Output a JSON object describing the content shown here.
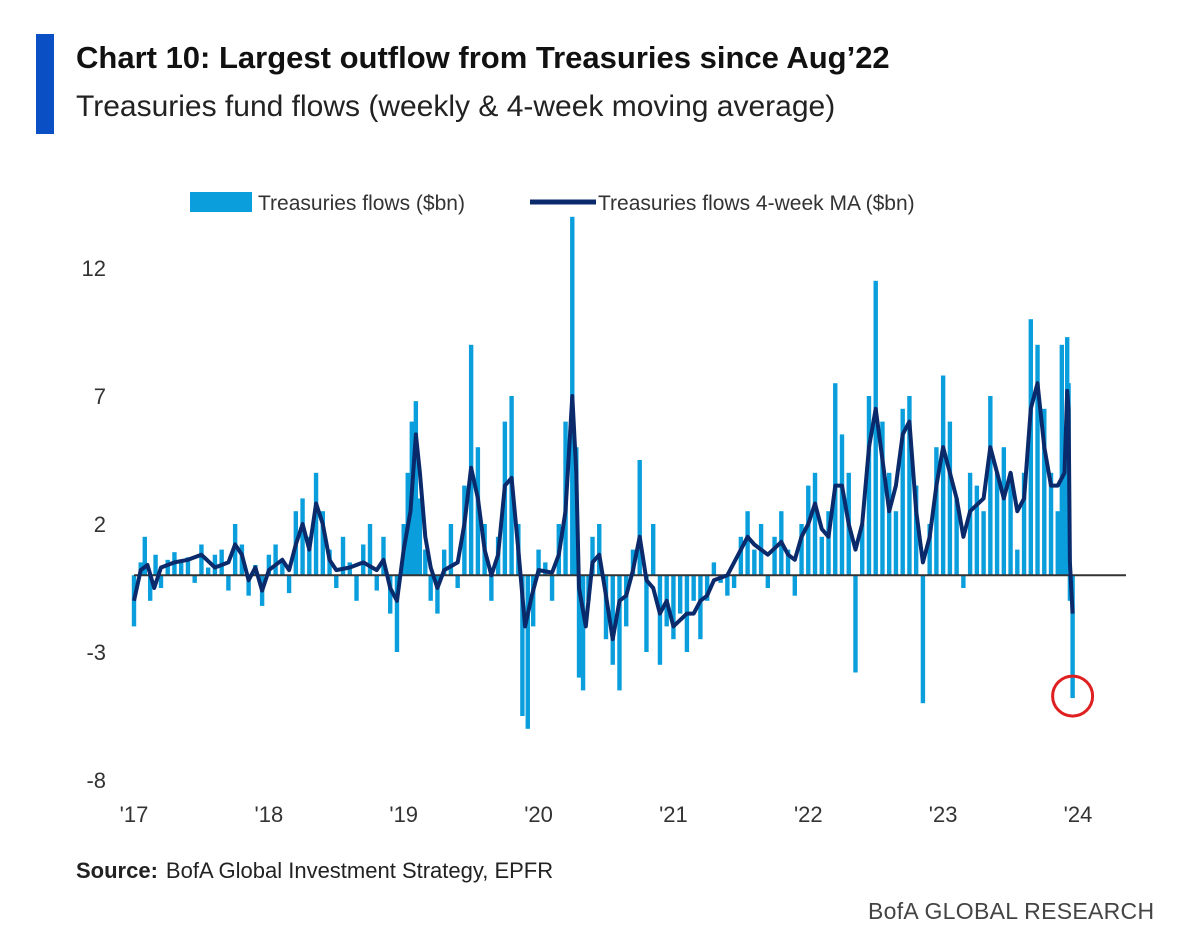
{
  "header": {
    "title": "Chart 10: Largest outflow from Treasuries since Aug’22",
    "subtitle": "Treasuries fund flows (weekly & 4-week moving average)"
  },
  "footer": {
    "source_label": "Source:",
    "source_text": "BofA Global Investment Strategy, EPFR",
    "brand": "BofA GLOBAL RESEARCH"
  },
  "colors": {
    "accent": "#0a4fc4",
    "weekly": "#0a9fdc",
    "ma": "#0b2a6b",
    "highlight_circle": "#e02020",
    "zero_line": "#333333"
  },
  "chart_data": {
    "type": "bar+line",
    "legend": {
      "placement": "top",
      "entries": [
        "Treasuries flows ($bn)",
        "Treasuries flows 4-week MA ($bn)"
      ]
    },
    "y_ticks": [
      12,
      7,
      2,
      -3,
      -8
    ],
    "ylim": [
      -8,
      13.5
    ],
    "x_ticks": [
      "'17",
      "'18",
      "'19",
      "'20",
      "'21",
      "'22",
      "'23",
      "'24"
    ],
    "xlim": [
      2017.0,
      2024.0
    ],
    "grid": false,
    "highlight": {
      "x": 2023.96,
      "y": -4.8,
      "shape": "circle"
    },
    "series": [
      {
        "name": "Treasuries flows ($bn)",
        "kind": "bar",
        "points": [
          [
            2017.0,
            -2.0
          ],
          [
            2017.05,
            0.5
          ],
          [
            2017.08,
            1.5
          ],
          [
            2017.12,
            -1.0
          ],
          [
            2017.16,
            0.8
          ],
          [
            2017.2,
            -0.5
          ],
          [
            2017.25,
            0.6
          ],
          [
            2017.3,
            0.9
          ],
          [
            2017.35,
            0.5
          ],
          [
            2017.4,
            0.7
          ],
          [
            2017.45,
            -0.3
          ],
          [
            2017.5,
            1.2
          ],
          [
            2017.55,
            0.3
          ],
          [
            2017.6,
            0.8
          ],
          [
            2017.65,
            1.0
          ],
          [
            2017.7,
            -0.6
          ],
          [
            2017.75,
            2.0
          ],
          [
            2017.8,
            1.2
          ],
          [
            2017.85,
            -0.8
          ],
          [
            2017.9,
            0.4
          ],
          [
            2017.95,
            -1.2
          ],
          [
            2018.0,
            0.8
          ],
          [
            2018.05,
            1.2
          ],
          [
            2018.1,
            0.5
          ],
          [
            2018.15,
            -0.7
          ],
          [
            2018.2,
            2.5
          ],
          [
            2018.25,
            3.0
          ],
          [
            2018.3,
            1.5
          ],
          [
            2018.35,
            4.0
          ],
          [
            2018.4,
            2.5
          ],
          [
            2018.45,
            1.0
          ],
          [
            2018.5,
            -0.5
          ],
          [
            2018.55,
            1.5
          ],
          [
            2018.6,
            0.5
          ],
          [
            2018.65,
            -1.0
          ],
          [
            2018.7,
            1.2
          ],
          [
            2018.75,
            2.0
          ],
          [
            2018.8,
            -0.6
          ],
          [
            2018.85,
            1.5
          ],
          [
            2018.9,
            -1.5
          ],
          [
            2018.95,
            -3.0
          ],
          [
            2019.0,
            2.0
          ],
          [
            2019.03,
            4.0
          ],
          [
            2019.06,
            6.0
          ],
          [
            2019.09,
            6.8
          ],
          [
            2019.12,
            3.0
          ],
          [
            2019.16,
            1.0
          ],
          [
            2019.2,
            -1.0
          ],
          [
            2019.25,
            -1.5
          ],
          [
            2019.3,
            1.0
          ],
          [
            2019.35,
            2.0
          ],
          [
            2019.4,
            -0.5
          ],
          [
            2019.45,
            3.5
          ],
          [
            2019.5,
            9.0
          ],
          [
            2019.55,
            5.0
          ],
          [
            2019.6,
            2.0
          ],
          [
            2019.65,
            -1.0
          ],
          [
            2019.7,
            1.5
          ],
          [
            2019.75,
            6.0
          ],
          [
            2019.8,
            7.0
          ],
          [
            2019.85,
            2.0
          ],
          [
            2019.88,
            -5.5
          ],
          [
            2019.92,
            -6.0
          ],
          [
            2019.96,
            -2.0
          ],
          [
            2020.0,
            1.0
          ],
          [
            2020.05,
            0.5
          ],
          [
            2020.1,
            -1.0
          ],
          [
            2020.15,
            2.0
          ],
          [
            2020.2,
            6.0
          ],
          [
            2020.25,
            14.0
          ],
          [
            2020.28,
            5.0
          ],
          [
            2020.3,
            -4.0
          ],
          [
            2020.33,
            -4.5
          ],
          [
            2020.37,
            -1.0
          ],
          [
            2020.4,
            1.5
          ],
          [
            2020.45,
            2.0
          ],
          [
            2020.5,
            -2.5
          ],
          [
            2020.55,
            -3.5
          ],
          [
            2020.6,
            -4.5
          ],
          [
            2020.65,
            -2.0
          ],
          [
            2020.7,
            1.0
          ],
          [
            2020.75,
            4.5
          ],
          [
            2020.8,
            -3.0
          ],
          [
            2020.85,
            2.0
          ],
          [
            2020.9,
            -3.5
          ],
          [
            2020.95,
            -2.0
          ],
          [
            2021.0,
            -2.5
          ],
          [
            2021.05,
            -1.5
          ],
          [
            2021.1,
            -3.0
          ],
          [
            2021.15,
            -1.0
          ],
          [
            2021.2,
            -2.5
          ],
          [
            2021.25,
            -1.0
          ],
          [
            2021.3,
            0.5
          ],
          [
            2021.35,
            -0.3
          ],
          [
            2021.4,
            -0.8
          ],
          [
            2021.45,
            -0.5
          ],
          [
            2021.5,
            1.5
          ],
          [
            2021.55,
            2.5
          ],
          [
            2021.6,
            1.0
          ],
          [
            2021.65,
            2.0
          ],
          [
            2021.7,
            -0.5
          ],
          [
            2021.75,
            1.5
          ],
          [
            2021.8,
            2.5
          ],
          [
            2021.85,
            1.0
          ],
          [
            2021.9,
            -0.8
          ],
          [
            2021.95,
            2.0
          ],
          [
            2022.0,
            3.5
          ],
          [
            2022.05,
            4.0
          ],
          [
            2022.1,
            1.5
          ],
          [
            2022.15,
            2.5
          ],
          [
            2022.2,
            7.5
          ],
          [
            2022.25,
            5.5
          ],
          [
            2022.3,
            4.0
          ],
          [
            2022.35,
            -3.8
          ],
          [
            2022.4,
            2.0
          ],
          [
            2022.45,
            7.0
          ],
          [
            2022.5,
            11.5
          ],
          [
            2022.55,
            6.0
          ],
          [
            2022.6,
            4.0
          ],
          [
            2022.65,
            2.5
          ],
          [
            2022.7,
            6.5
          ],
          [
            2022.75,
            7.0
          ],
          [
            2022.8,
            3.5
          ],
          [
            2022.85,
            -5.0
          ],
          [
            2022.9,
            2.0
          ],
          [
            2022.95,
            5.0
          ],
          [
            2023.0,
            7.8
          ],
          [
            2023.05,
            6.0
          ],
          [
            2023.1,
            3.0
          ],
          [
            2023.15,
            -0.5
          ],
          [
            2023.2,
            4.0
          ],
          [
            2023.25,
            3.5
          ],
          [
            2023.3,
            2.5
          ],
          [
            2023.35,
            7.0
          ],
          [
            2023.4,
            4.0
          ],
          [
            2023.45,
            5.0
          ],
          [
            2023.5,
            4.0
          ],
          [
            2023.55,
            1.0
          ],
          [
            2023.6,
            4.0
          ],
          [
            2023.65,
            10.0
          ],
          [
            2023.7,
            9.0
          ],
          [
            2023.75,
            6.5
          ],
          [
            2023.8,
            4.0
          ],
          [
            2023.85,
            2.5
          ],
          [
            2023.88,
            9.0
          ],
          [
            2023.9,
            5.0
          ],
          [
            2023.92,
            9.3
          ],
          [
            2023.93,
            7.5
          ],
          [
            2023.94,
            -1.0
          ],
          [
            2023.96,
            -4.8
          ]
        ]
      },
      {
        "name": "Treasuries flows 4-week MA ($bn)",
        "kind": "line",
        "points": [
          [
            2017.0,
            -1.0
          ],
          [
            2017.05,
            0.2
          ],
          [
            2017.1,
            0.4
          ],
          [
            2017.15,
            -0.5
          ],
          [
            2017.2,
            0.3
          ],
          [
            2017.3,
            0.5
          ],
          [
            2017.4,
            0.6
          ],
          [
            2017.5,
            0.8
          ],
          [
            2017.6,
            0.3
          ],
          [
            2017.7,
            0.5
          ],
          [
            2017.75,
            1.2
          ],
          [
            2017.8,
            0.8
          ],
          [
            2017.85,
            -0.2
          ],
          [
            2017.9,
            0.3
          ],
          [
            2017.95,
            -0.6
          ],
          [
            2018.0,
            0.2
          ],
          [
            2018.1,
            0.6
          ],
          [
            2018.15,
            0.2
          ],
          [
            2018.2,
            1.2
          ],
          [
            2018.25,
            2.0
          ],
          [
            2018.3,
            1.0
          ],
          [
            2018.35,
            2.8
          ],
          [
            2018.4,
            2.0
          ],
          [
            2018.45,
            0.6
          ],
          [
            2018.5,
            0.2
          ],
          [
            2018.6,
            0.3
          ],
          [
            2018.7,
            0.5
          ],
          [
            2018.8,
            0.2
          ],
          [
            2018.85,
            0.6
          ],
          [
            2018.9,
            -0.5
          ],
          [
            2018.95,
            -1.0
          ],
          [
            2019.0,
            1.0
          ],
          [
            2019.05,
            2.5
          ],
          [
            2019.09,
            5.5
          ],
          [
            2019.12,
            4.0
          ],
          [
            2019.16,
            1.5
          ],
          [
            2019.2,
            0.3
          ],
          [
            2019.25,
            -0.5
          ],
          [
            2019.3,
            0.2
          ],
          [
            2019.4,
            0.5
          ],
          [
            2019.45,
            2.0
          ],
          [
            2019.5,
            4.2
          ],
          [
            2019.55,
            3.0
          ],
          [
            2019.6,
            1.0
          ],
          [
            2019.65,
            0.0
          ],
          [
            2019.7,
            0.8
          ],
          [
            2019.75,
            3.5
          ],
          [
            2019.8,
            3.8
          ],
          [
            2019.85,
            1.0
          ],
          [
            2019.9,
            -2.0
          ],
          [
            2019.95,
            -0.8
          ],
          [
            2020.0,
            0.2
          ],
          [
            2020.1,
            0.1
          ],
          [
            2020.15,
            0.8
          ],
          [
            2020.2,
            2.5
          ],
          [
            2020.25,
            7.0
          ],
          [
            2020.28,
            4.0
          ],
          [
            2020.3,
            -0.5
          ],
          [
            2020.35,
            -2.0
          ],
          [
            2020.4,
            0.5
          ],
          [
            2020.45,
            0.8
          ],
          [
            2020.5,
            -0.8
          ],
          [
            2020.55,
            -2.5
          ],
          [
            2020.6,
            -1.0
          ],
          [
            2020.65,
            -0.8
          ],
          [
            2020.7,
            0.2
          ],
          [
            2020.75,
            1.5
          ],
          [
            2020.8,
            -0.2
          ],
          [
            2020.85,
            -0.5
          ],
          [
            2020.9,
            -1.5
          ],
          [
            2020.95,
            -1.0
          ],
          [
            2021.0,
            -2.0
          ],
          [
            2021.1,
            -1.5
          ],
          [
            2021.15,
            -1.5
          ],
          [
            2021.2,
            -1.0
          ],
          [
            2021.25,
            -0.8
          ],
          [
            2021.3,
            -0.2
          ],
          [
            2021.4,
            0.0
          ],
          [
            2021.5,
            1.0
          ],
          [
            2021.55,
            1.5
          ],
          [
            2021.6,
            1.2
          ],
          [
            2021.7,
            0.8
          ],
          [
            2021.8,
            1.3
          ],
          [
            2021.85,
            0.8
          ],
          [
            2021.9,
            0.6
          ],
          [
            2021.95,
            1.5
          ],
          [
            2022.0,
            2.0
          ],
          [
            2022.05,
            2.8
          ],
          [
            2022.1,
            1.8
          ],
          [
            2022.15,
            1.5
          ],
          [
            2022.2,
            3.5
          ],
          [
            2022.25,
            3.5
          ],
          [
            2022.3,
            2.0
          ],
          [
            2022.35,
            1.0
          ],
          [
            2022.4,
            2.0
          ],
          [
            2022.45,
            5.0
          ],
          [
            2022.5,
            6.5
          ],
          [
            2022.55,
            4.5
          ],
          [
            2022.6,
            2.5
          ],
          [
            2022.65,
            3.5
          ],
          [
            2022.7,
            5.5
          ],
          [
            2022.75,
            6.0
          ],
          [
            2022.8,
            2.5
          ],
          [
            2022.85,
            0.5
          ],
          [
            2022.9,
            1.5
          ],
          [
            2022.95,
            3.5
          ],
          [
            2023.0,
            5.0
          ],
          [
            2023.05,
            4.0
          ],
          [
            2023.1,
            3.0
          ],
          [
            2023.15,
            1.5
          ],
          [
            2023.2,
            2.5
          ],
          [
            2023.3,
            3.0
          ],
          [
            2023.35,
            5.0
          ],
          [
            2023.4,
            4.0
          ],
          [
            2023.45,
            3.0
          ],
          [
            2023.5,
            4.0
          ],
          [
            2023.55,
            2.5
          ],
          [
            2023.6,
            3.0
          ],
          [
            2023.65,
            6.5
          ],
          [
            2023.7,
            7.5
          ],
          [
            2023.75,
            5.0
          ],
          [
            2023.8,
            3.5
          ],
          [
            2023.85,
            3.5
          ],
          [
            2023.9,
            4.0
          ],
          [
            2023.92,
            7.2
          ],
          [
            2023.93,
            6.5
          ],
          [
            2023.94,
            0.5
          ],
          [
            2023.96,
            -1.5
          ]
        ]
      }
    ]
  }
}
